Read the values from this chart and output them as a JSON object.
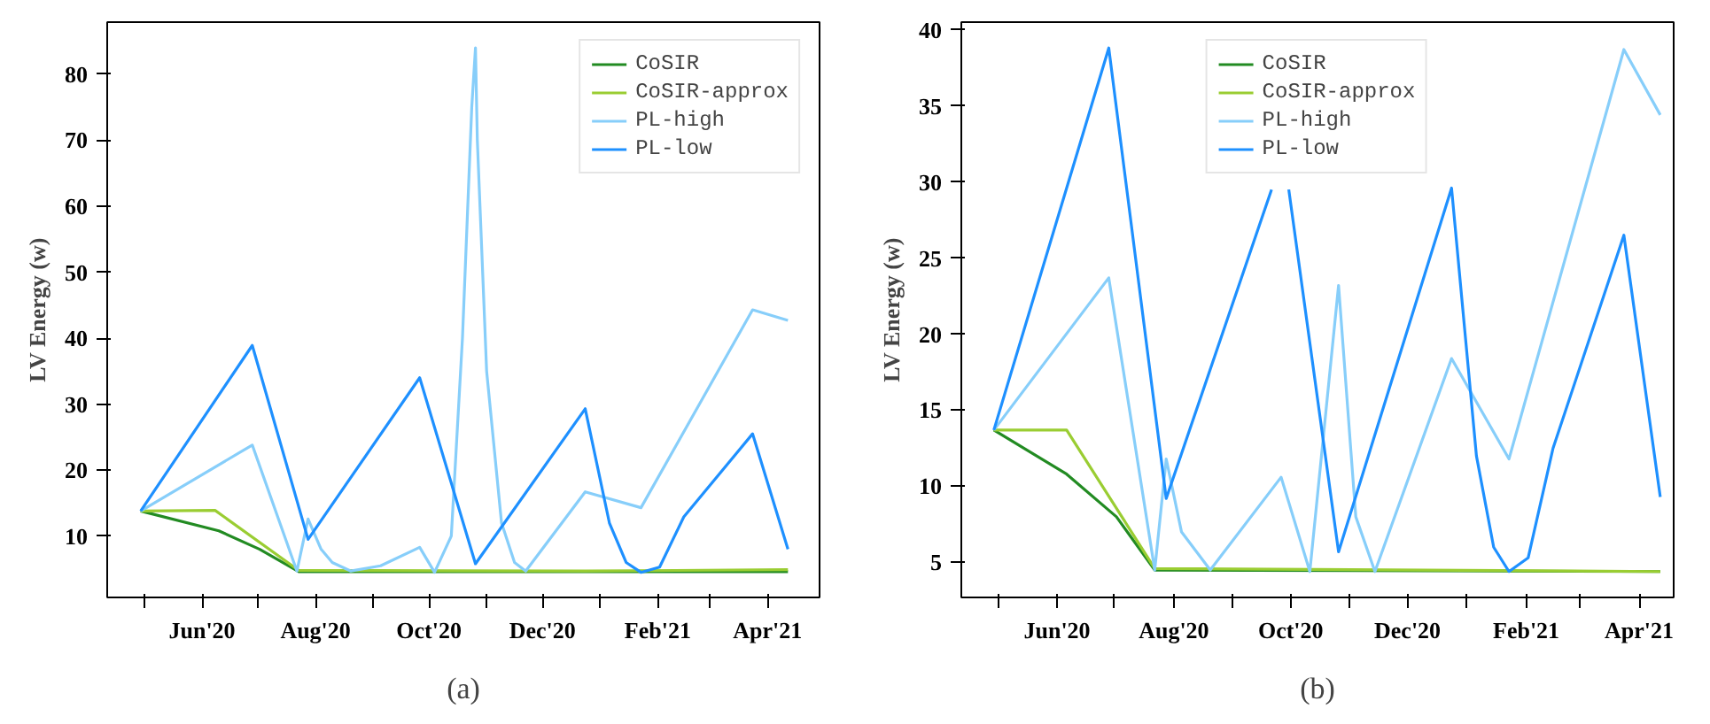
{
  "chart_data": [
    {
      "type": "line",
      "ylabel": "LV Energy (w)",
      "annotations": [
        "(a)"
      ],
      "legend": "top right",
      "grid": false,
      "xlim": [
        "2020-04-11",
        "2021-04-29"
      ],
      "ylim": [
        0.7,
        87.9
      ],
      "xticks": [
        {
          "value": "2020-05-01",
          "label": null
        },
        {
          "value": "2020-06-01",
          "label": "Jun'20"
        },
        {
          "value": "2020-07-01",
          "label": null
        },
        {
          "value": "2020-08-01",
          "label": "Aug'20"
        },
        {
          "value": "2020-09-01",
          "label": null
        },
        {
          "value": "2020-10-01",
          "label": "Oct'20"
        },
        {
          "value": "2020-11-01",
          "label": null
        },
        {
          "value": "2020-12-01",
          "label": "Dec'20"
        },
        {
          "value": "2021-01-01",
          "label": null
        },
        {
          "value": "2021-02-01",
          "label": "Feb'21"
        },
        {
          "value": "2021-03-01",
          "label": null
        },
        {
          "value": "2021-04-01",
          "label": "Apr'21"
        }
      ],
      "yticks": [
        10,
        20,
        30,
        40,
        50,
        60,
        70,
        80
      ],
      "series": [
        {
          "name": "CoSIR",
          "color": "#228b22",
          "x": [
            "2020-04-29",
            "2020-06-10",
            "2020-07-02",
            "2020-07-23",
            "2021-04-12"
          ],
          "values": [
            13.8,
            10.8,
            8,
            4.6,
            4.6
          ]
        },
        {
          "name": "CoSIR-approx",
          "color": "#9acd32",
          "x": [
            "2020-04-29",
            "2020-06-08",
            "2020-07-23",
            "2020-12-24",
            "2021-04-12"
          ],
          "values": [
            13.8,
            13.9,
            4.8,
            4.7,
            4.9
          ]
        },
        {
          "name": "PL-high",
          "color": "#87cefa",
          "x": [
            "2020-04-29",
            "2020-06-28",
            "2020-07-22",
            "2020-07-28",
            "2020-08-04",
            "2020-08-10",
            "2020-08-20",
            "2020-09-05",
            "2020-09-26",
            "2020-10-04",
            "2020-10-13",
            "2020-10-19",
            "2020-10-24",
            "2020-10-26",
            "2020-10-27",
            "2020-11-01",
            "2020-11-09",
            "2020-11-16",
            "2020-11-22",
            "2020-12-24",
            "2021-01-23",
            "2021-03-24",
            "2021-04-12"
          ],
          "values": [
            13.8,
            23.8,
            4.7,
            12.6,
            8,
            6,
            4.7,
            5.5,
            8.3,
            4.5,
            10,
            40,
            75,
            84,
            70,
            35,
            12,
            6,
            4.7,
            16.7,
            14.3,
            44.3,
            42.7
          ]
        },
        {
          "name": "PL-low",
          "color": "#1e90ff",
          "x": [
            "2020-04-29",
            "2020-06-28",
            "2020-07-28",
            "2020-09-26",
            "2020-10-26",
            "2020-12-24",
            "2021-01-06",
            "2021-01-15",
            "2021-01-23",
            "2021-02-02",
            "2021-02-15",
            "2021-03-24",
            "2021-04-12"
          ],
          "values": [
            13.8,
            38.9,
            9.5,
            34,
            5.8,
            29.3,
            12,
            6,
            4.5,
            5.3,
            12.9,
            25.5,
            8
          ]
        }
      ]
    },
    {
      "type": "line",
      "ylabel": "LV Energy (w)",
      "annotations": [
        "(b)"
      ],
      "legend": "top",
      "grid": false,
      "xlim": [
        "2020-04-12",
        "2021-04-19"
      ],
      "ylim": [
        2.7,
        40.5
      ],
      "xticks": [
        {
          "value": "2020-05-01",
          "label": null
        },
        {
          "value": "2020-06-01",
          "label": "Jun'20"
        },
        {
          "value": "2020-07-01",
          "label": null
        },
        {
          "value": "2020-08-01",
          "label": "Aug'20"
        },
        {
          "value": "2020-09-01",
          "label": null
        },
        {
          "value": "2020-10-01",
          "label": "Oct'20"
        },
        {
          "value": "2020-11-01",
          "label": null
        },
        {
          "value": "2020-12-01",
          "label": "Dec'20"
        },
        {
          "value": "2021-01-01",
          "label": null
        },
        {
          "value": "2021-02-01",
          "label": "Feb'21"
        },
        {
          "value": "2021-03-01",
          "label": null
        },
        {
          "value": "2021-04-01",
          "label": "Apr'21"
        }
      ],
      "yticks": [
        5,
        10,
        15,
        20,
        25,
        30,
        35,
        40
      ],
      "series": [
        {
          "name": "CoSIR",
          "color": "#228b22",
          "x": [
            "2020-04-29",
            "2020-06-06",
            "2020-07-02",
            "2020-07-22",
            "2021-04-12"
          ],
          "values": [
            13.7,
            10.8,
            8,
            4.5,
            4.4
          ]
        },
        {
          "name": "CoSIR-approx",
          "color": "#9acd32",
          "x": [
            "2020-04-29",
            "2020-06-06",
            "2020-07-22",
            "2021-04-12"
          ],
          "values": [
            13.7,
            13.7,
            4.6,
            4.4
          ]
        },
        {
          "name": "PL-high",
          "color": "#87cefa",
          "x": [
            "2020-04-29",
            "2020-06-28",
            "2020-07-22",
            "2020-07-28",
            "2020-08-05",
            "2020-08-20",
            "2020-09-26",
            "2020-10-11",
            "2020-10-26",
            "2020-11-04",
            "2020-11-14",
            "2020-12-24",
            "2021-01-23",
            "2021-03-24",
            "2021-04-12"
          ],
          "values": [
            13.7,
            23.7,
            4.5,
            11.8,
            7,
            4.5,
            10.6,
            4.4,
            23.2,
            8,
            4.4,
            18.4,
            11.8,
            38.7,
            34.4
          ]
        },
        {
          "name": "PL-low",
          "color": "#1e90ff",
          "x": [
            "2020-04-29",
            "2020-06-28",
            "2020-07-28",
            "2020-09-21",
            "2020-09-26",
            "2020-09-30",
            "2020-10-26",
            "2020-12-24",
            "2021-01-06",
            "2021-01-15",
            "2021-01-23",
            "2021-02-02",
            "2021-02-15",
            "2021-03-24",
            "2021-04-12"
          ],
          "values": [
            13.7,
            38.8,
            9.2,
            29.5,
            null,
            29.5,
            5.7,
            29.6,
            12,
            6,
            4.4,
            5.3,
            12.5,
            26.5,
            9.3
          ]
        }
      ]
    }
  ]
}
